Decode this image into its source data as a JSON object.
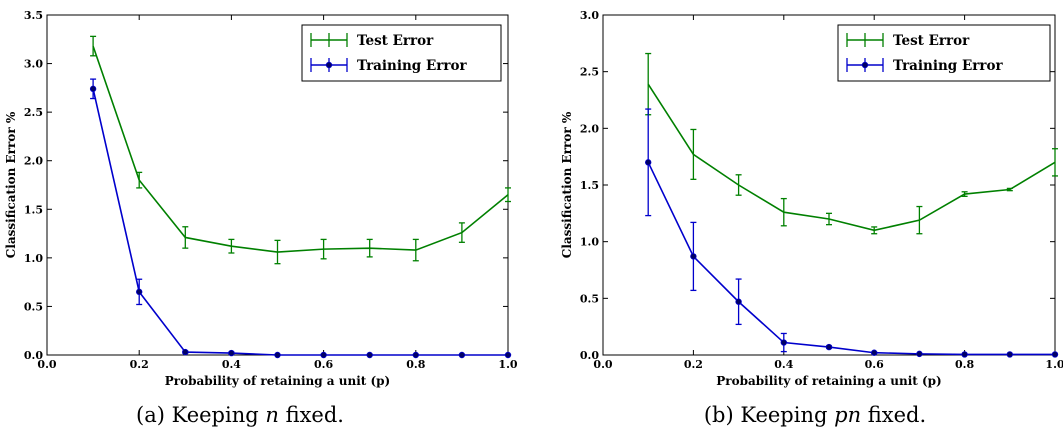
{
  "colors": {
    "test": "#008000",
    "train": "#0000cc",
    "axis": "#000000"
  },
  "chart_data": [
    {
      "type": "line",
      "caption": {
        "prefix": "(a) Keeping ",
        "var": "n",
        "suffix": " fixed."
      },
      "xlabel": "Probability of retaining a unit (p)",
      "ylabel": "Classification Error %",
      "xlim": [
        0.0,
        1.0
      ],
      "ylim": [
        0.0,
        3.5
      ],
      "xticks": [
        "0.0",
        "0.2",
        "0.4",
        "0.6",
        "0.8",
        "1.0"
      ],
      "yticks": [
        "0.0",
        "0.5",
        "1.0",
        "1.5",
        "2.0",
        "2.5",
        "3.0",
        "3.5"
      ],
      "legend": "top-right",
      "series": [
        {
          "name": "Test Error",
          "color": "#008000",
          "marker": "none",
          "x": [
            0.1,
            0.2,
            0.3,
            0.4,
            0.5,
            0.6,
            0.7,
            0.8,
            0.9,
            1.0
          ],
          "y": [
            3.18,
            1.8,
            1.21,
            1.12,
            1.06,
            1.09,
            1.1,
            1.08,
            1.26,
            1.65
          ],
          "err": [
            0.1,
            0.08,
            0.11,
            0.07,
            0.12,
            0.1,
            0.09,
            0.11,
            0.1,
            0.07
          ]
        },
        {
          "name": "Training Error",
          "color": "#0000cc",
          "marker": "circle",
          "x": [
            0.1,
            0.2,
            0.3,
            0.4,
            0.5,
            0.6,
            0.7,
            0.8,
            0.9,
            1.0
          ],
          "y": [
            2.74,
            0.65,
            0.03,
            0.02,
            0.0,
            0.0,
            0.0,
            0.0,
            0.0,
            0.0
          ],
          "err": [
            0.1,
            0.13,
            0.01,
            0.01,
            0.0,
            0.0,
            0.0,
            0.0,
            0.0,
            0.0
          ]
        }
      ]
    },
    {
      "type": "line",
      "caption": {
        "prefix": "(b) Keeping ",
        "var": "pn",
        "suffix": " fixed."
      },
      "xlabel": "Probability of retaining a unit (p)",
      "ylabel": "Classification Error %",
      "xlim": [
        0.0,
        1.0
      ],
      "ylim": [
        0.0,
        3.0
      ],
      "xticks": [
        "0.0",
        "0.2",
        "0.4",
        "0.6",
        "0.8",
        "1.0"
      ],
      "yticks": [
        "0.0",
        "0.5",
        "1.0",
        "1.5",
        "2.0",
        "2.5",
        "3.0"
      ],
      "legend": "top-right",
      "series": [
        {
          "name": "Test Error",
          "color": "#008000",
          "marker": "none",
          "x": [
            0.1,
            0.2,
            0.3,
            0.4,
            0.5,
            0.6,
            0.7,
            0.8,
            0.9,
            1.0
          ],
          "y": [
            2.39,
            1.77,
            1.5,
            1.26,
            1.2,
            1.1,
            1.19,
            1.42,
            1.46,
            1.7
          ],
          "err": [
            0.27,
            0.22,
            0.09,
            0.12,
            0.05,
            0.03,
            0.12,
            0.02,
            0.01,
            0.12
          ]
        },
        {
          "name": "Training Error",
          "color": "#0000cc",
          "marker": "circle",
          "x": [
            0.1,
            0.2,
            0.3,
            0.4,
            0.5,
            0.6,
            0.7,
            0.8,
            0.9,
            1.0
          ],
          "y": [
            1.7,
            0.87,
            0.47,
            0.11,
            0.07,
            0.02,
            0.01,
            0.005,
            0.005,
            0.005
          ],
          "err": [
            0.47,
            0.3,
            0.2,
            0.08,
            0.01,
            0.005,
            0.003,
            0.002,
            0.002,
            0.002
          ]
        }
      ]
    }
  ]
}
